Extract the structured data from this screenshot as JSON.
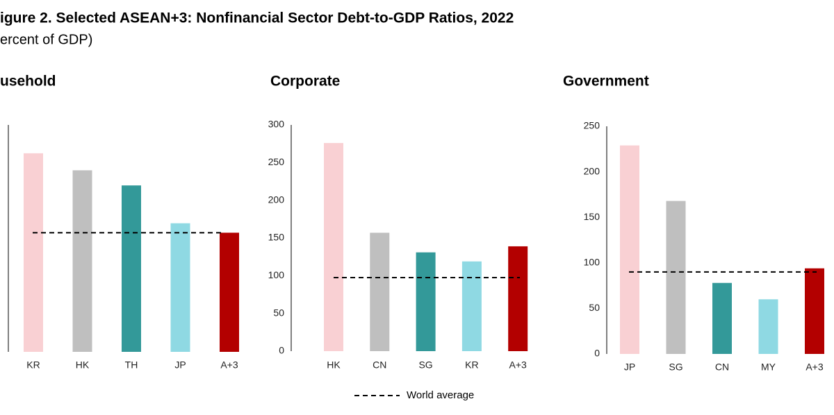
{
  "title": "igure 2. Selected ASEAN+3: Nonfinancial Sector Debt-to-GDP Ratios, 2022",
  "subtitle": "ercent of GDP)",
  "legend_label": "World average",
  "chart_data": [
    {
      "type": "bar",
      "title": "usehold",
      "categories": [
        "KR",
        "HK",
        "TH",
        "JP",
        "A+3"
      ],
      "values": [
        105,
        96,
        88,
        68,
        63
      ],
      "colors": [
        "#f9d0d3",
        "#bfbfbf",
        "#339999",
        "#8fd9e3",
        "#b30000"
      ],
      "reference": 63,
      "ylim": [
        0,
        120
      ],
      "yticks": []
    },
    {
      "type": "bar",
      "title": "Corporate",
      "categories": [
        "HK",
        "CN",
        "SG",
        "KR",
        "A+3"
      ],
      "values": [
        276,
        157,
        131,
        119,
        139
      ],
      "colors": [
        "#f9d0d3",
        "#bfbfbf",
        "#339999",
        "#8fd9e3",
        "#b30000"
      ],
      "reference": 97.5,
      "ylim": [
        0,
        300
      ],
      "yticks": [
        0,
        50,
        100,
        150,
        200,
        250,
        300
      ]
    },
    {
      "type": "bar",
      "title": "Government",
      "categories": [
        "JP",
        "SG",
        "CN",
        "MY",
        "A+3"
      ],
      "values": [
        229,
        168,
        78,
        60,
        94
      ],
      "colors": [
        "#f9d0d3",
        "#bfbfbf",
        "#339999",
        "#8fd9e3",
        "#b30000"
      ],
      "reference": 90,
      "ylim": [
        0,
        250
      ],
      "yticks": [
        0,
        50,
        100,
        150,
        200,
        250
      ]
    }
  ]
}
